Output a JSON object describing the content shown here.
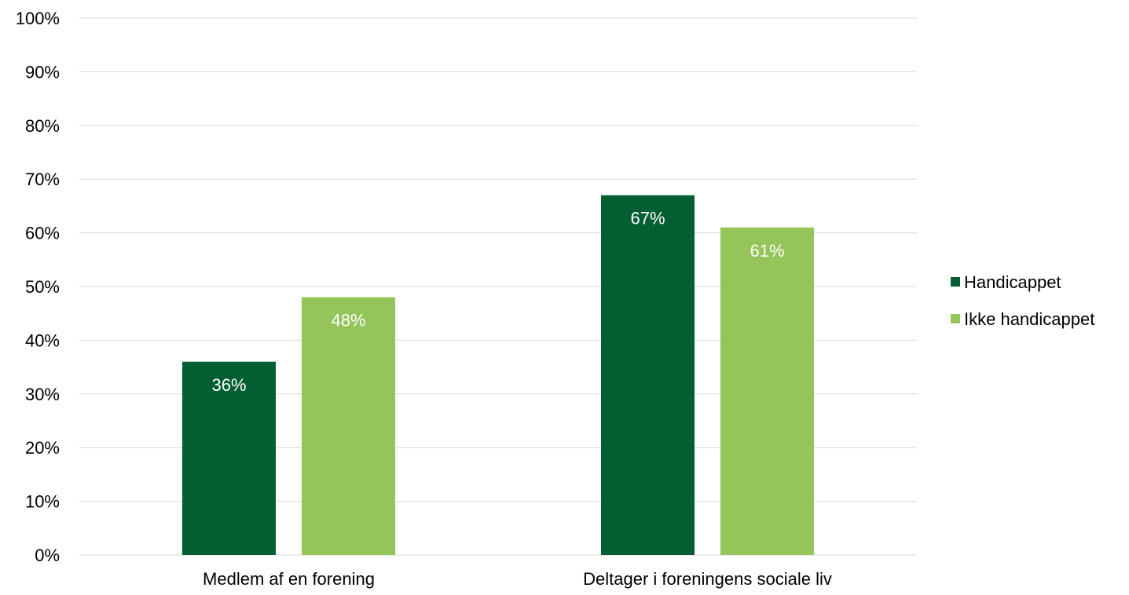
{
  "chart_data": {
    "type": "bar",
    "categories": [
      "Medlem af en forening",
      "Deltager i foreningens sociale liv"
    ],
    "series": [
      {
        "name": "Handicappet",
        "values": [
          36,
          67
        ],
        "labels": [
          "36%",
          "67%"
        ],
        "color": "#035f32"
      },
      {
        "name": "Ikke handicappet",
        "values": [
          48,
          61
        ],
        "labels": [
          "48%",
          "61%"
        ],
        "color": "#94c45a"
      }
    ],
    "ylim": [
      0,
      100
    ],
    "yticks": [
      "0%",
      "10%",
      "20%",
      "30%",
      "40%",
      "50%",
      "60%",
      "70%",
      "80%",
      "90%",
      "100%"
    ],
    "grid": true,
    "legend": "right",
    "gridline_color": "#d9d9d9",
    "data_label_color": "#ffffff"
  }
}
